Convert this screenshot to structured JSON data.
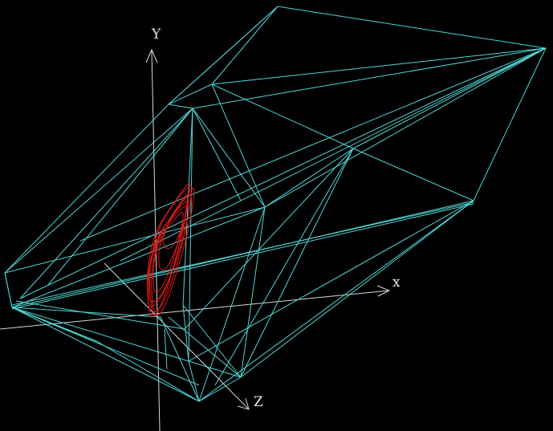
{
  "scene": {
    "background_color": "#000000",
    "hull_color": "#4fd6d6",
    "orbit_color": "#e01818",
    "axis_color": "#d8d8d8"
  },
  "axes": {
    "x_label": "x",
    "y_label": "Y",
    "z_label": "Z"
  }
}
